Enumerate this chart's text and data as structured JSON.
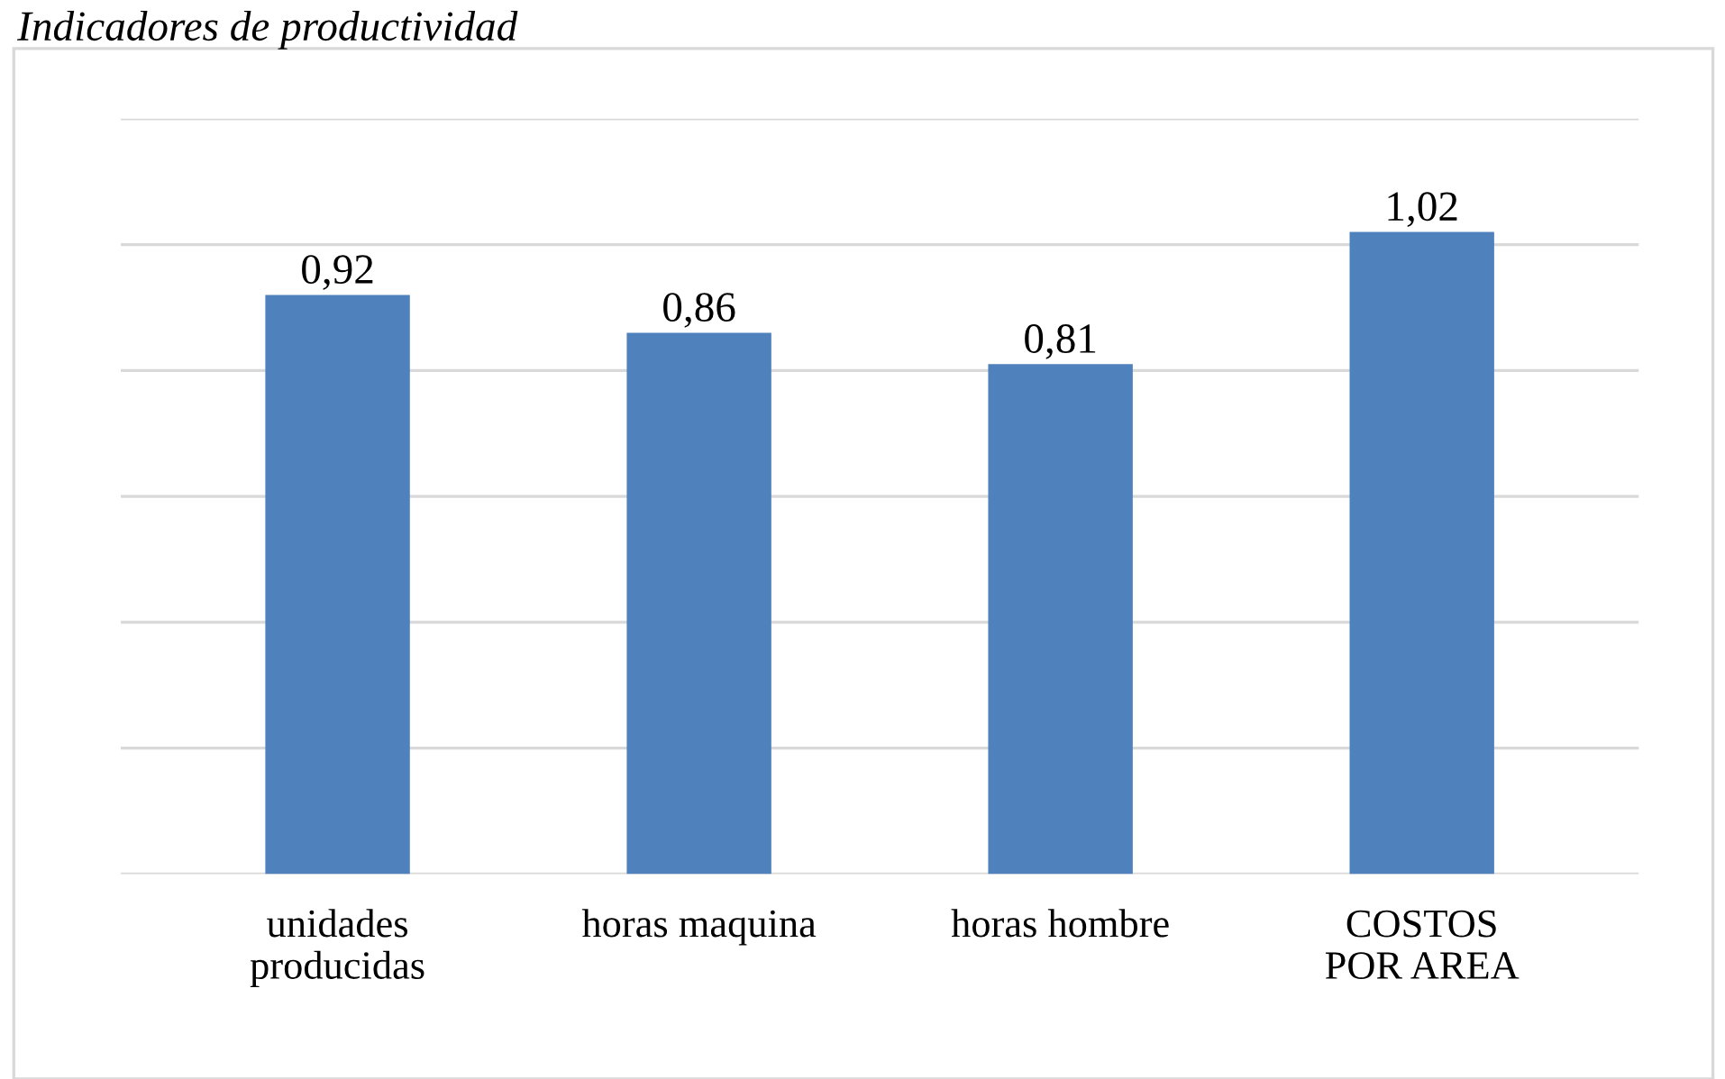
{
  "chart_data": {
    "type": "bar",
    "title": "Indicadores de productividad",
    "categories": [
      "unidades\nproducidas",
      "horas maquina",
      "horas hombre",
      "COSTOS\nPOR AREA"
    ],
    "values": [
      0.92,
      0.86,
      0.81,
      1.02
    ],
    "value_labels": [
      "0,92",
      "0,86",
      "0,81",
      "1,02"
    ],
    "color": "#4f81bd",
    "ylim": [
      0,
      1.2
    ],
    "yticks": [
      {
        "value": 0,
        "label": null
      },
      {
        "value": 0.2,
        "label": null
      },
      {
        "value": 0.4,
        "label": null
      },
      {
        "value": 0.6,
        "label": null
      },
      {
        "value": 0.8,
        "label": null
      },
      {
        "value": 1.0,
        "label": null
      },
      {
        "value": 1.2,
        "label": null
      }
    ],
    "grid": "y",
    "tick_labels": "x"
  }
}
